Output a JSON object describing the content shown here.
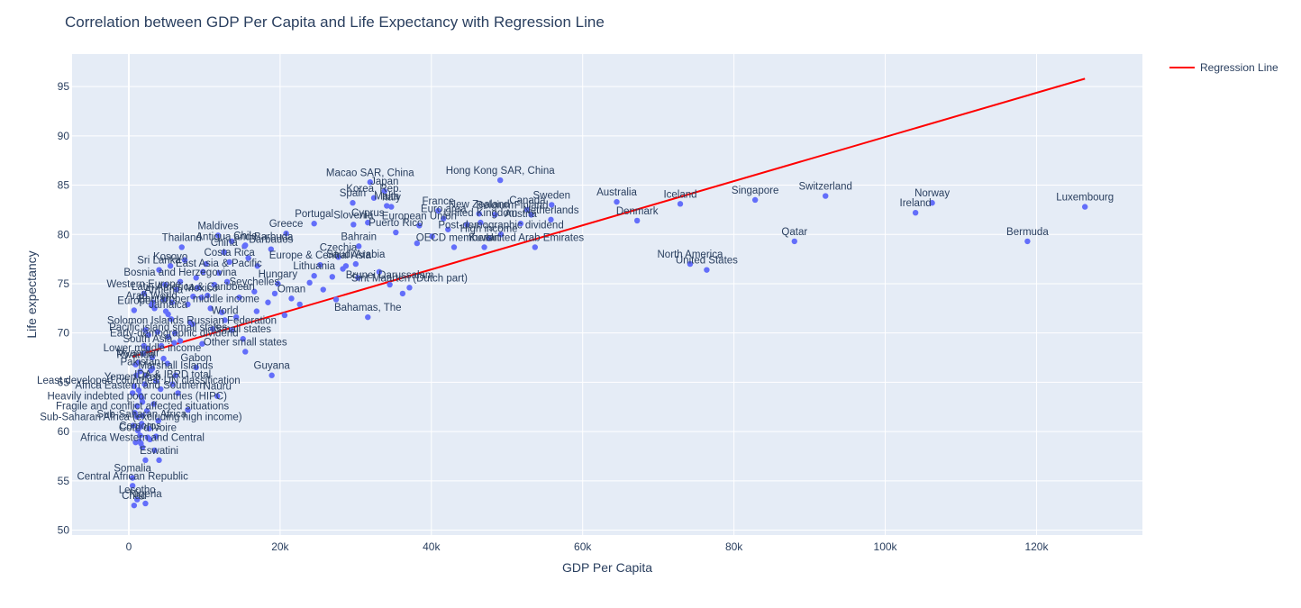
{
  "colors": {
    "plot_bg": "#e5ecf6",
    "grid": "#ffffff",
    "marker": "#636efa",
    "regression": "#ff0000",
    "text": "#2a3f5f"
  },
  "chart_data": {
    "type": "scatter",
    "title": "Correlation between GDP Per Capita and Life Expectancy with Regression Line",
    "xlabel": "GDP Per Capita",
    "ylabel": "Life expectancy",
    "xlim": [
      -7500,
      134000
    ],
    "ylim": [
      49.5,
      98.3
    ],
    "x_ticks": [
      0,
      20000,
      40000,
      60000,
      80000,
      100000,
      120000
    ],
    "x_tick_labels": [
      "0",
      "20k",
      "40k",
      "60k",
      "80k",
      "100k",
      "120k"
    ],
    "y_ticks": [
      50,
      55,
      60,
      65,
      70,
      75,
      80,
      85,
      90,
      95
    ],
    "y_tick_labels": [
      "50",
      "55",
      "60",
      "65",
      "70",
      "75",
      "80",
      "85",
      "90",
      "95"
    ],
    "grid": true,
    "legend_position": "top-right",
    "regression": {
      "name": "Regression Line",
      "x": [
        500,
        126400
      ],
      "y": [
        67.6,
        95.8
      ]
    },
    "series": [
      {
        "name": "Countries",
        "points": [
          {
            "label": "Macao SAR, China",
            "x": 31900,
            "y": 85.3
          },
          {
            "label": "Hong Kong SAR, China",
            "x": 49100,
            "y": 85.5
          },
          {
            "label": "Japan",
            "x": 33800,
            "y": 84.4
          },
          {
            "label": "Korea, Rep.",
            "x": 32400,
            "y": 83.7
          },
          {
            "label": "Spain",
            "x": 29600,
            "y": 83.2
          },
          {
            "label": "Malta",
            "x": 34100,
            "y": 82.9
          },
          {
            "label": "Italy",
            "x": 34700,
            "y": 82.8
          },
          {
            "label": "France",
            "x": 40900,
            "y": 82.4
          },
          {
            "label": "New Zealand",
            "x": 46300,
            "y": 82.1
          },
          {
            "label": "Belgium",
            "x": 48400,
            "y": 82.0
          },
          {
            "label": "Sweden",
            "x": 55900,
            "y": 83.0
          },
          {
            "label": "Canada",
            "x": 52700,
            "y": 82.5
          },
          {
            "label": "Finland",
            "x": 53200,
            "y": 82.0
          },
          {
            "label": "Netherlands",
            "x": 55800,
            "y": 81.5
          },
          {
            "label": "Austria",
            "x": 51800,
            "y": 81.1
          },
          {
            "label": "Euro area",
            "x": 41600,
            "y": 81.6
          },
          {
            "label": "United Kingdom",
            "x": 46500,
            "y": 81.2
          },
          {
            "label": "European Union",
            "x": 38400,
            "y": 80.9
          },
          {
            "label": "Cyprus",
            "x": 31600,
            "y": 81.2
          },
          {
            "label": "Slovenia",
            "x": 29700,
            "y": 81.0
          },
          {
            "label": "Portugal",
            "x": 24500,
            "y": 81.1
          },
          {
            "label": "Greece",
            "x": 20800,
            "y": 80.1
          },
          {
            "label": "Puerto Rico",
            "x": 35300,
            "y": 80.2
          },
          {
            "label": "Post-demographic dividend",
            "x": 49200,
            "y": 80.0
          },
          {
            "label": "High income",
            "x": 47600,
            "y": 79.6
          },
          {
            "label": "Australia",
            "x": 64500,
            "y": 83.3
          },
          {
            "label": "Iceland",
            "x": 72900,
            "y": 83.1
          },
          {
            "label": "Denmark",
            "x": 67200,
            "y": 81.4
          },
          {
            "label": "Singapore",
            "x": 82800,
            "y": 83.5
          },
          {
            "label": "Switzerland",
            "x": 92100,
            "y": 83.9
          },
          {
            "label": "Norway",
            "x": 106200,
            "y": 83.2
          },
          {
            "label": "Ireland",
            "x": 104000,
            "y": 82.2
          },
          {
            "label": "Luxembourg",
            "x": 126400,
            "y": 82.8
          },
          {
            "label": "Qatar",
            "x": 88000,
            "y": 79.3
          },
          {
            "label": "Bermuda",
            "x": 118800,
            "y": 79.3
          },
          {
            "label": "North America",
            "x": 74200,
            "y": 77.0
          },
          {
            "label": "United States",
            "x": 76400,
            "y": 76.4
          },
          {
            "label": "OECD members",
            "x": 43000,
            "y": 78.7
          },
          {
            "label": "Kuwait",
            "x": 47000,
            "y": 78.7
          },
          {
            "label": "United Arab Emirates",
            "x": 53700,
            "y": 78.7
          },
          {
            "label": "Bahrain",
            "x": 30400,
            "y": 78.8
          },
          {
            "label": "Czechia",
            "x": 27700,
            "y": 77.7
          },
          {
            "label": "Saudi Arabia",
            "x": 30000,
            "y": 77.0
          },
          {
            "label": "Europe & Central Asia",
            "x": 25300,
            "y": 76.9
          },
          {
            "label": "Lithuania",
            "x": 24500,
            "y": 75.8
          },
          {
            "label": "Brunei Darussalam",
            "x": 34500,
            "y": 74.9
          },
          {
            "label": "Sint Maarten (Dutch part)",
            "x": 37100,
            "y": 74.6
          },
          {
            "label": "Bahamas, The",
            "x": 31600,
            "y": 71.6
          },
          {
            "label": "Hungary",
            "x": 19700,
            "y": 75.0
          },
          {
            "label": "Seychelles",
            "x": 16600,
            "y": 74.2
          },
          {
            "label": "Oman",
            "x": 21500,
            "y": 73.5
          },
          {
            "label": "Barbados",
            "x": 18800,
            "y": 78.5
          },
          {
            "label": "Antigua and Barbuda",
            "x": 15300,
            "y": 78.8
          },
          {
            "label": "Chile",
            "x": 15400,
            "y": 78.9
          },
          {
            "label": "China",
            "x": 12600,
            "y": 78.2
          },
          {
            "label": "Costa Rica",
            "x": 13300,
            "y": 77.2
          },
          {
            "label": "Maldives",
            "x": 11800,
            "y": 79.9
          },
          {
            "label": "Thailand",
            "x": 7000,
            "y": 78.7
          },
          {
            "label": "Kosovo",
            "x": 5500,
            "y": 76.8
          },
          {
            "label": "Sri Lanka",
            "x": 4000,
            "y": 76.4
          },
          {
            "label": "East Asia & Pacific",
            "x": 11900,
            "y": 76.1
          },
          {
            "label": "Latin America & Caribbean",
            "x": 8500,
            "y": 73.7
          },
          {
            "label": "World",
            "x": 12700,
            "y": 71.3
          },
          {
            "label": "Upper middle income",
            "x": 10800,
            "y": 72.5
          },
          {
            "label": "Russian Federation",
            "x": 13600,
            "y": 70.3
          },
          {
            "label": "Small states",
            "x": 15100,
            "y": 69.4
          },
          {
            "label": "Other small states",
            "x": 15400,
            "y": 68.1
          },
          {
            "label": "Pacific island small states",
            "x": 5200,
            "y": 69.6
          },
          {
            "label": "Early-demographic dividend",
            "x": 6000,
            "y": 69.0
          },
          {
            "label": "South Asia",
            "x": 2500,
            "y": 68.4
          },
          {
            "label": "Lower middle income",
            "x": 3100,
            "y": 67.5
          },
          {
            "label": "Guyana",
            "x": 18900,
            "y": 65.7
          },
          {
            "label": "Nauru",
            "x": 11700,
            "y": 63.6
          },
          {
            "label": "Gabon",
            "x": 8900,
            "y": 66.5
          },
          {
            "label": "Marshall Islands",
            "x": 6200,
            "y": 65.7
          },
          {
            "label": "IDA & IBRD total",
            "x": 5800,
            "y": 64.8
          },
          {
            "label": "Least developed countries: UN classification",
            "x": 1300,
            "y": 64.2
          },
          {
            "label": "Heavily indebted poor countries (HIPC)",
            "x": 1100,
            "y": 62.6
          },
          {
            "label": "Fragile and conflict affected situations",
            "x": 1800,
            "y": 61.6
          },
          {
            "label": "Sub-Saharan Africa (excluding high income)",
            "x": 1600,
            "y": 60.5
          },
          {
            "label": "Cote d'Ivoire",
            "x": 2500,
            "y": 59.4
          },
          {
            "label": "Sub-Saharan Africa",
            "x": 1700,
            "y": 60.8
          },
          {
            "label": "Africa Western and Central",
            "x": 1800,
            "y": 58.4
          },
          {
            "label": "Eswatini",
            "x": 4000,
            "y": 57.1
          },
          {
            "label": "Somalia",
            "x": 500,
            "y": 55.3
          },
          {
            "label": "Central African Republic",
            "x": 500,
            "y": 54.5
          },
          {
            "label": "Lesotho",
            "x": 1100,
            "y": 53.1
          },
          {
            "label": "Chad",
            "x": 700,
            "y": 52.5
          },
          {
            "label": "Nigeria",
            "x": 2200,
            "y": 52.7
          },
          {
            "label": "Comoros",
            "x": 1500,
            "y": 59.6
          },
          {
            "label": "Yemen, Rep.",
            "x": 700,
            "y": 64.6
          },
          {
            "label": "Pakistan",
            "x": 1500,
            "y": 66.1
          },
          {
            "label": "Rwanda",
            "x": 900,
            "y": 66.8
          },
          {
            "label": "Myanmar",
            "x": 1200,
            "y": 67.0
          },
          {
            "label": "Africa Eastern and Southern",
            "x": 1500,
            "y": 63.7
          },
          {
            "label": "Armenia",
            "x": 4600,
            "y": 73.4
          },
          {
            "label": "Bhutan",
            "x": 3400,
            "y": 72.5
          },
          {
            "label": "Jamaica",
            "x": 5200,
            "y": 71.9
          },
          {
            "label": "Solomon Islands",
            "x": 2200,
            "y": 70.3
          },
          {
            "label": "Europe",
            "x": 700,
            "y": 72.3
          },
          {
            "label": "Arab World",
            "x": 3000,
            "y": 72.8
          },
          {
            "label": "Western Europe",
            "x": 2000,
            "y": 74.0
          },
          {
            "label": "Mexico",
            "x": 9600,
            "y": 73.6
          },
          {
            "label": "Bosnia and Herzegovina",
            "x": 6800,
            "y": 75.2
          }
        ],
        "extra_points": [
          [
            7400,
            77.4
          ],
          [
            9800,
            76.2
          ],
          [
            8900,
            75.6
          ],
          [
            11300,
            74.9
          ],
          [
            13000,
            75.2
          ],
          [
            6300,
            74.4
          ],
          [
            4800,
            74.9
          ],
          [
            3200,
            73.1
          ],
          [
            7800,
            72.9
          ],
          [
            10400,
            73.8
          ],
          [
            12300,
            72.1
          ],
          [
            5600,
            71.4
          ],
          [
            8400,
            70.9
          ],
          [
            3800,
            70.1
          ],
          [
            6800,
            69.2
          ],
          [
            2600,
            69.8
          ],
          [
            4300,
            68.7
          ],
          [
            1900,
            67.9
          ],
          [
            5100,
            66.9
          ],
          [
            2900,
            66.2
          ],
          [
            3600,
            65.1
          ],
          [
            2100,
            64.8
          ],
          [
            4200,
            64.3
          ],
          [
            1700,
            63.4
          ],
          [
            3300,
            62.8
          ],
          [
            2400,
            62.1
          ],
          [
            800,
            61.9
          ],
          [
            3900,
            61.1
          ],
          [
            1200,
            60.1
          ],
          [
            2800,
            59.2
          ],
          [
            1600,
            58.8
          ],
          [
            3400,
            58.1
          ],
          [
            2200,
            57.1
          ],
          [
            900,
            58.9
          ],
          [
            6500,
            63.9
          ],
          [
            7800,
            62.2
          ],
          [
            9700,
            68.9
          ],
          [
            11100,
            70.4
          ],
          [
            14200,
            71.6
          ],
          [
            16900,
            72.2
          ],
          [
            18400,
            73.1
          ],
          [
            20600,
            71.8
          ],
          [
            22600,
            72.9
          ],
          [
            25700,
            74.4
          ],
          [
            26900,
            75.7
          ],
          [
            28300,
            76.5
          ],
          [
            30300,
            75.6
          ],
          [
            33100,
            76.2
          ],
          [
            36200,
            74.0
          ],
          [
            38100,
            79.1
          ],
          [
            40100,
            79.8
          ],
          [
            42200,
            80.5
          ],
          [
            44700,
            81.0
          ],
          [
            28700,
            76.8
          ],
          [
            19300,
            74.0
          ],
          [
            17000,
            76.8
          ],
          [
            15800,
            77.6
          ],
          [
            13600,
            79.3
          ],
          [
            10200,
            77.0
          ],
          [
            8100,
            71.1
          ],
          [
            6100,
            70.0
          ],
          [
            4600,
            67.4
          ],
          [
            3100,
            66.4
          ],
          [
            2300,
            65.7
          ],
          [
            1800,
            63.0
          ],
          [
            1100,
            61.5
          ],
          [
            600,
            60.6
          ],
          [
            1400,
            59.0
          ],
          [
            2700,
            60.3
          ],
          [
            3600,
            59.5
          ],
          [
            500,
            63.9
          ],
          [
            1000,
            65.7
          ],
          [
            2000,
            68.7
          ],
          [
            4900,
            72.2
          ],
          [
            5700,
            73.1
          ],
          [
            9100,
            74.6
          ],
          [
            14600,
            73.6
          ],
          [
            23900,
            75.1
          ],
          [
            27400,
            73.4
          ]
        ]
      }
    ]
  }
}
